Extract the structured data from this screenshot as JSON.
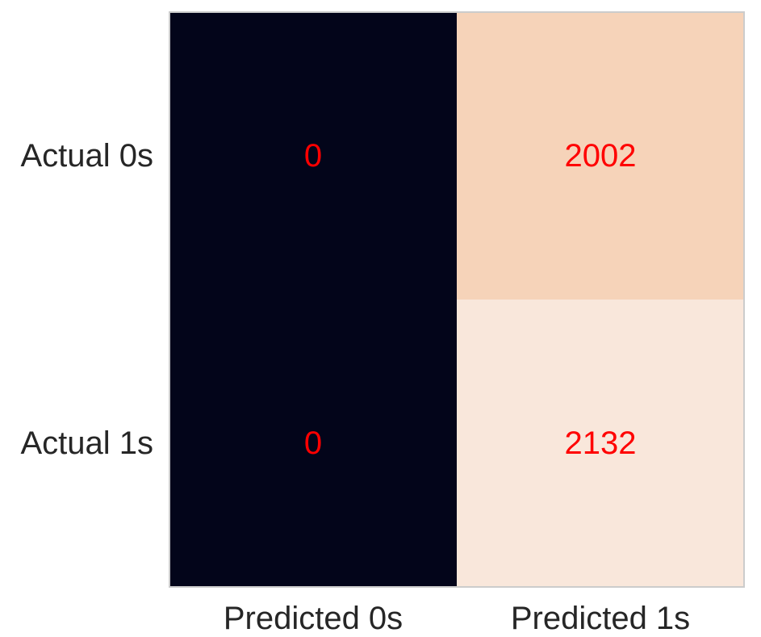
{
  "chart_data": {
    "type": "heatmap",
    "title": "",
    "xlabel": "",
    "ylabel": "",
    "x_categories": [
      "Predicted 0s",
      "Predicted 1s"
    ],
    "y_categories": [
      "Actual 0s",
      "Actual 1s"
    ],
    "values": [
      [
        0,
        2002
      ],
      [
        0,
        2132
      ]
    ],
    "cell_label_color": "#ff0000",
    "colorbar": false,
    "grid": false,
    "colormap": "rocket",
    "cell_colors": [
      [
        "#03051a",
        "#f6d3b9"
      ],
      [
        "#03051a",
        "#f9e7db"
      ]
    ],
    "frame_color": "#cccccc"
  }
}
